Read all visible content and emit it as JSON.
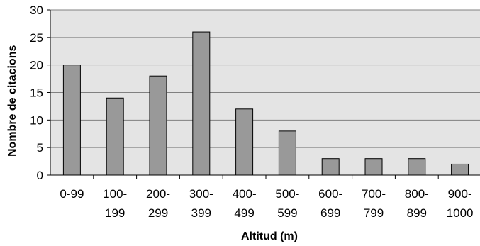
{
  "chart_data": {
    "type": "bar",
    "categories": [
      "0-99",
      "100-199",
      "200-299",
      "300-399",
      "400-499",
      "500-599",
      "600-699",
      "700-799",
      "800-899",
      "900-1000"
    ],
    "category_label_lines": [
      [
        "0-99"
      ],
      [
        "100-",
        "199"
      ],
      [
        "200-",
        "299"
      ],
      [
        "300-",
        "399"
      ],
      [
        "400-",
        "499"
      ],
      [
        "500-",
        "599"
      ],
      [
        "600-",
        "699"
      ],
      [
        "700-",
        "799"
      ],
      [
        "800-",
        "899"
      ],
      [
        "900-",
        "1000"
      ]
    ],
    "values": [
      20,
      14,
      18,
      26,
      12,
      8,
      3,
      3,
      3,
      2
    ],
    "xlabel": "Altitud (m)",
    "ylabel": "Nombre de citacions",
    "ylim": [
      0,
      30
    ],
    "yticks": [
      0,
      5,
      10,
      15,
      20,
      25,
      30
    ],
    "grid": true,
    "legend": "none",
    "colors": {
      "bar_fill": "#999999",
      "bar_stroke": "#000000",
      "plot_background": "#e4e4e4",
      "gridline": "#808080"
    }
  }
}
